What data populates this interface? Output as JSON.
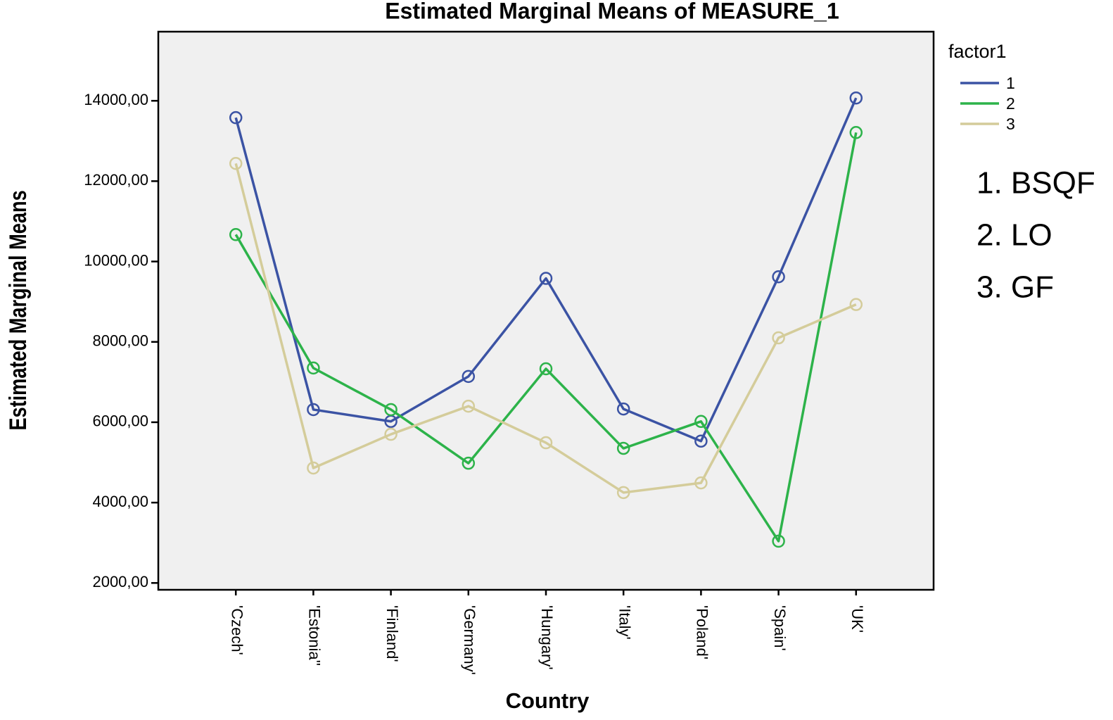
{
  "chart_data": {
    "type": "line",
    "title": "Estimated Marginal Means of MEASURE_1",
    "x_label": "Country",
    "y_label": "Estimated Marginal Means",
    "categories": [
      "'Czech'",
      "'Estonia''",
      "'Finland'",
      "'Germany'",
      "'Hungary'",
      "'Italy'",
      "'Poland'",
      "'Spain'",
      "'UK'"
    ],
    "series": [
      {
        "name": "1",
        "color": "#3b53a4",
        "values": [
          13580,
          6315,
          6020,
          7140,
          9580,
          6330,
          5530,
          9620,
          14070
        ]
      },
      {
        "name": "2",
        "color": "#2db34a",
        "values": [
          10670,
          7350,
          6315,
          4980,
          7330,
          5350,
          6020,
          3040,
          13210
        ]
      },
      {
        "name": "3",
        "color": "#d4cc9a",
        "values": [
          12440,
          4860,
          5700,
          6400,
          5490,
          4250,
          4490,
          8100,
          8930
        ]
      }
    ],
    "legend_title": "factor1",
    "legend": "right",
    "annotations": [
      "1. BSQF",
      "2. LO",
      "3. GF"
    ],
    "ylim": [
      1830,
      15720
    ],
    "yticks": [
      {
        "value": 2000,
        "label": "2000,00"
      },
      {
        "value": 4000,
        "label": "4000,00"
      },
      {
        "value": 6000,
        "label": "6000,00"
      },
      {
        "value": 8000,
        "label": "8000,00"
      },
      {
        "value": 10000,
        "label": "10000,00"
      },
      {
        "value": 12000,
        "label": "12000,00"
      },
      {
        "value": 14000,
        "label": "14000,00"
      }
    ],
    "grid": false
  }
}
